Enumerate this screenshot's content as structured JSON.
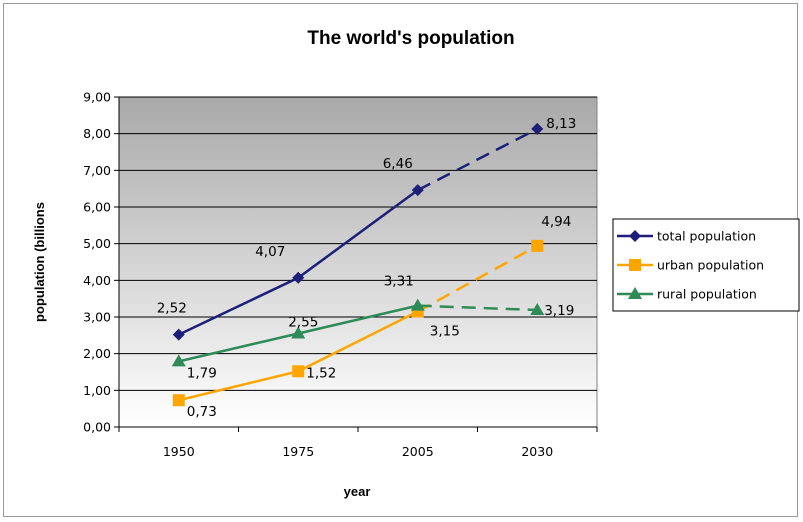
{
  "chart_data": {
    "type": "line",
    "title": "The world's population",
    "xlabel": "year",
    "ylabel": "population (billions",
    "categories": [
      "1950",
      "1975",
      "2005",
      "2030"
    ],
    "ylim": [
      0,
      9
    ],
    "ytick_labels": [
      "0,00",
      "1,00",
      "2,00",
      "3,00",
      "4,00",
      "5,00",
      "6,00",
      "7,00",
      "8,00",
      "9,00"
    ],
    "grid": true,
    "legend_position": "right",
    "projected_segment": "2005-2030 (dashed)",
    "series": [
      {
        "name": "total population",
        "values": [
          2.52,
          4.07,
          6.46,
          8.13
        ],
        "labels": [
          "2,52",
          "4,07",
          "6,46",
          "8,13"
        ],
        "color": "#1f1f7a",
        "marker": "diamond"
      },
      {
        "name": "urban population",
        "values": [
          0.73,
          1.52,
          3.15,
          4.94
        ],
        "labels": [
          "0,73",
          "1,52",
          "3,15",
          "4,94"
        ],
        "color": "#ffa500",
        "marker": "square"
      },
      {
        "name": "rural population",
        "values": [
          1.79,
          2.55,
          3.31,
          3.19
        ],
        "labels": [
          "1,79",
          "2,55",
          "3,31",
          "3,19"
        ],
        "color": "#2e8b57",
        "marker": "triangle"
      }
    ]
  }
}
